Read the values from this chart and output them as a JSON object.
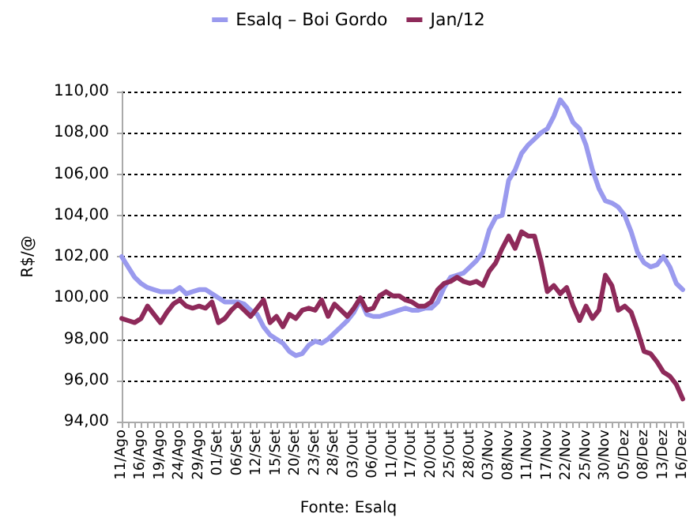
{
  "chart_data": {
    "type": "line",
    "ylabel": "R$/@",
    "annotations": [
      "Fonte: Esalq"
    ],
    "categories": [
      "11/Ago",
      null,
      null,
      "16/Ago",
      null,
      null,
      "19/Ago",
      null,
      null,
      "24/Ago",
      null,
      null,
      "29/Ago",
      null,
      null,
      "01/Set",
      null,
      null,
      "06/Set",
      null,
      null,
      "12/Set",
      null,
      null,
      "15/Set",
      null,
      null,
      "20/Set",
      null,
      null,
      "23/Set",
      null,
      null,
      "28/Set",
      null,
      null,
      "03/Out",
      null,
      null,
      "06/Out",
      null,
      null,
      "11/Out",
      null,
      null,
      "17/Out",
      null,
      null,
      "20/Out",
      null,
      null,
      "25/Out",
      null,
      null,
      "28/Out",
      null,
      null,
      "03/Nov",
      null,
      null,
      "08/Nov",
      null,
      null,
      "11/Nov",
      null,
      null,
      "17/Nov",
      null,
      null,
      "22/Nov",
      null,
      null,
      "25/Nov",
      null,
      null,
      "30/Nov",
      null,
      null,
      "05/Dez",
      null,
      null,
      "08/Dez",
      null,
      null,
      "13/Dez",
      null,
      null,
      "16/Dez"
    ],
    "series": [
      {
        "name": "Esalq – Boi Gordo",
        "color": "#9a9aee",
        "values": [
          102.0,
          101.5,
          101.0,
          100.7,
          100.5,
          100.4,
          100.3,
          100.3,
          100.3,
          100.5,
          100.2,
          100.3,
          100.4,
          100.4,
          100.2,
          100.0,
          99.8,
          99.8,
          99.8,
          99.7,
          99.4,
          99.2,
          98.6,
          98.2,
          98.0,
          97.8,
          97.4,
          97.2,
          97.3,
          97.7,
          97.9,
          97.8,
          98.0,
          98.3,
          98.6,
          98.9,
          99.3,
          99.9,
          99.2,
          99.1,
          99.1,
          99.2,
          99.3,
          99.4,
          99.5,
          99.4,
          99.4,
          99.5,
          99.5,
          99.8,
          100.5,
          101.0,
          101.1,
          101.2,
          101.5,
          101.8,
          102.2,
          103.3,
          103.9,
          104.0,
          105.7,
          106.2,
          107.0,
          107.4,
          107.7,
          108.0,
          108.2,
          108.8,
          109.6,
          109.2,
          108.5,
          108.2,
          107.4,
          106.2,
          105.3,
          104.7,
          104.6,
          104.4,
          104.0,
          103.2,
          102.2,
          101.7,
          101.5,
          101.6,
          102.0,
          101.5,
          100.7,
          100.4
        ]
      },
      {
        "name": "Jan/12",
        "color": "#8e2a5a",
        "values": [
          99.0,
          98.9,
          98.8,
          99.0,
          99.6,
          99.2,
          98.8,
          99.3,
          99.7,
          99.9,
          99.6,
          99.5,
          99.6,
          99.5,
          99.8,
          98.8,
          99.0,
          99.4,
          99.7,
          99.4,
          99.1,
          99.5,
          99.9,
          98.8,
          99.1,
          98.6,
          99.2,
          99.0,
          99.4,
          99.5,
          99.4,
          99.9,
          99.1,
          99.7,
          99.4,
          99.1,
          99.5,
          100.0,
          99.4,
          99.5,
          100.1,
          100.3,
          100.1,
          100.1,
          99.9,
          99.8,
          99.6,
          99.6,
          99.8,
          100.4,
          100.7,
          100.8,
          101.0,
          100.8,
          100.7,
          100.8,
          100.6,
          101.3,
          101.7,
          102.4,
          103.0,
          102.4,
          103.2,
          103.0,
          103.0,
          101.8,
          100.3,
          100.6,
          100.2,
          100.5,
          99.6,
          98.9,
          99.6,
          99.0,
          99.4,
          101.1,
          100.6,
          99.4,
          99.6,
          99.3,
          98.4,
          97.4,
          97.3,
          96.9,
          96.4,
          96.2,
          95.8,
          95.1
        ]
      }
    ],
    "ylim": [
      94,
      110
    ],
    "yticks": [
      {
        "value": 94,
        "label": "94,00"
      },
      {
        "value": 96,
        "label": "96,00"
      },
      {
        "value": 98,
        "label": "98,00"
      },
      {
        "value": 100,
        "label": "100,00"
      },
      {
        "value": 102,
        "label": "102,00"
      },
      {
        "value": 104,
        "label": "104,00"
      },
      {
        "value": 106,
        "label": "106,00"
      },
      {
        "value": 108,
        "label": "108,00"
      },
      {
        "value": 110,
        "label": "110,00"
      }
    ],
    "grid": "y",
    "legend": "top",
    "marker": "none",
    "line_style": "solid"
  }
}
